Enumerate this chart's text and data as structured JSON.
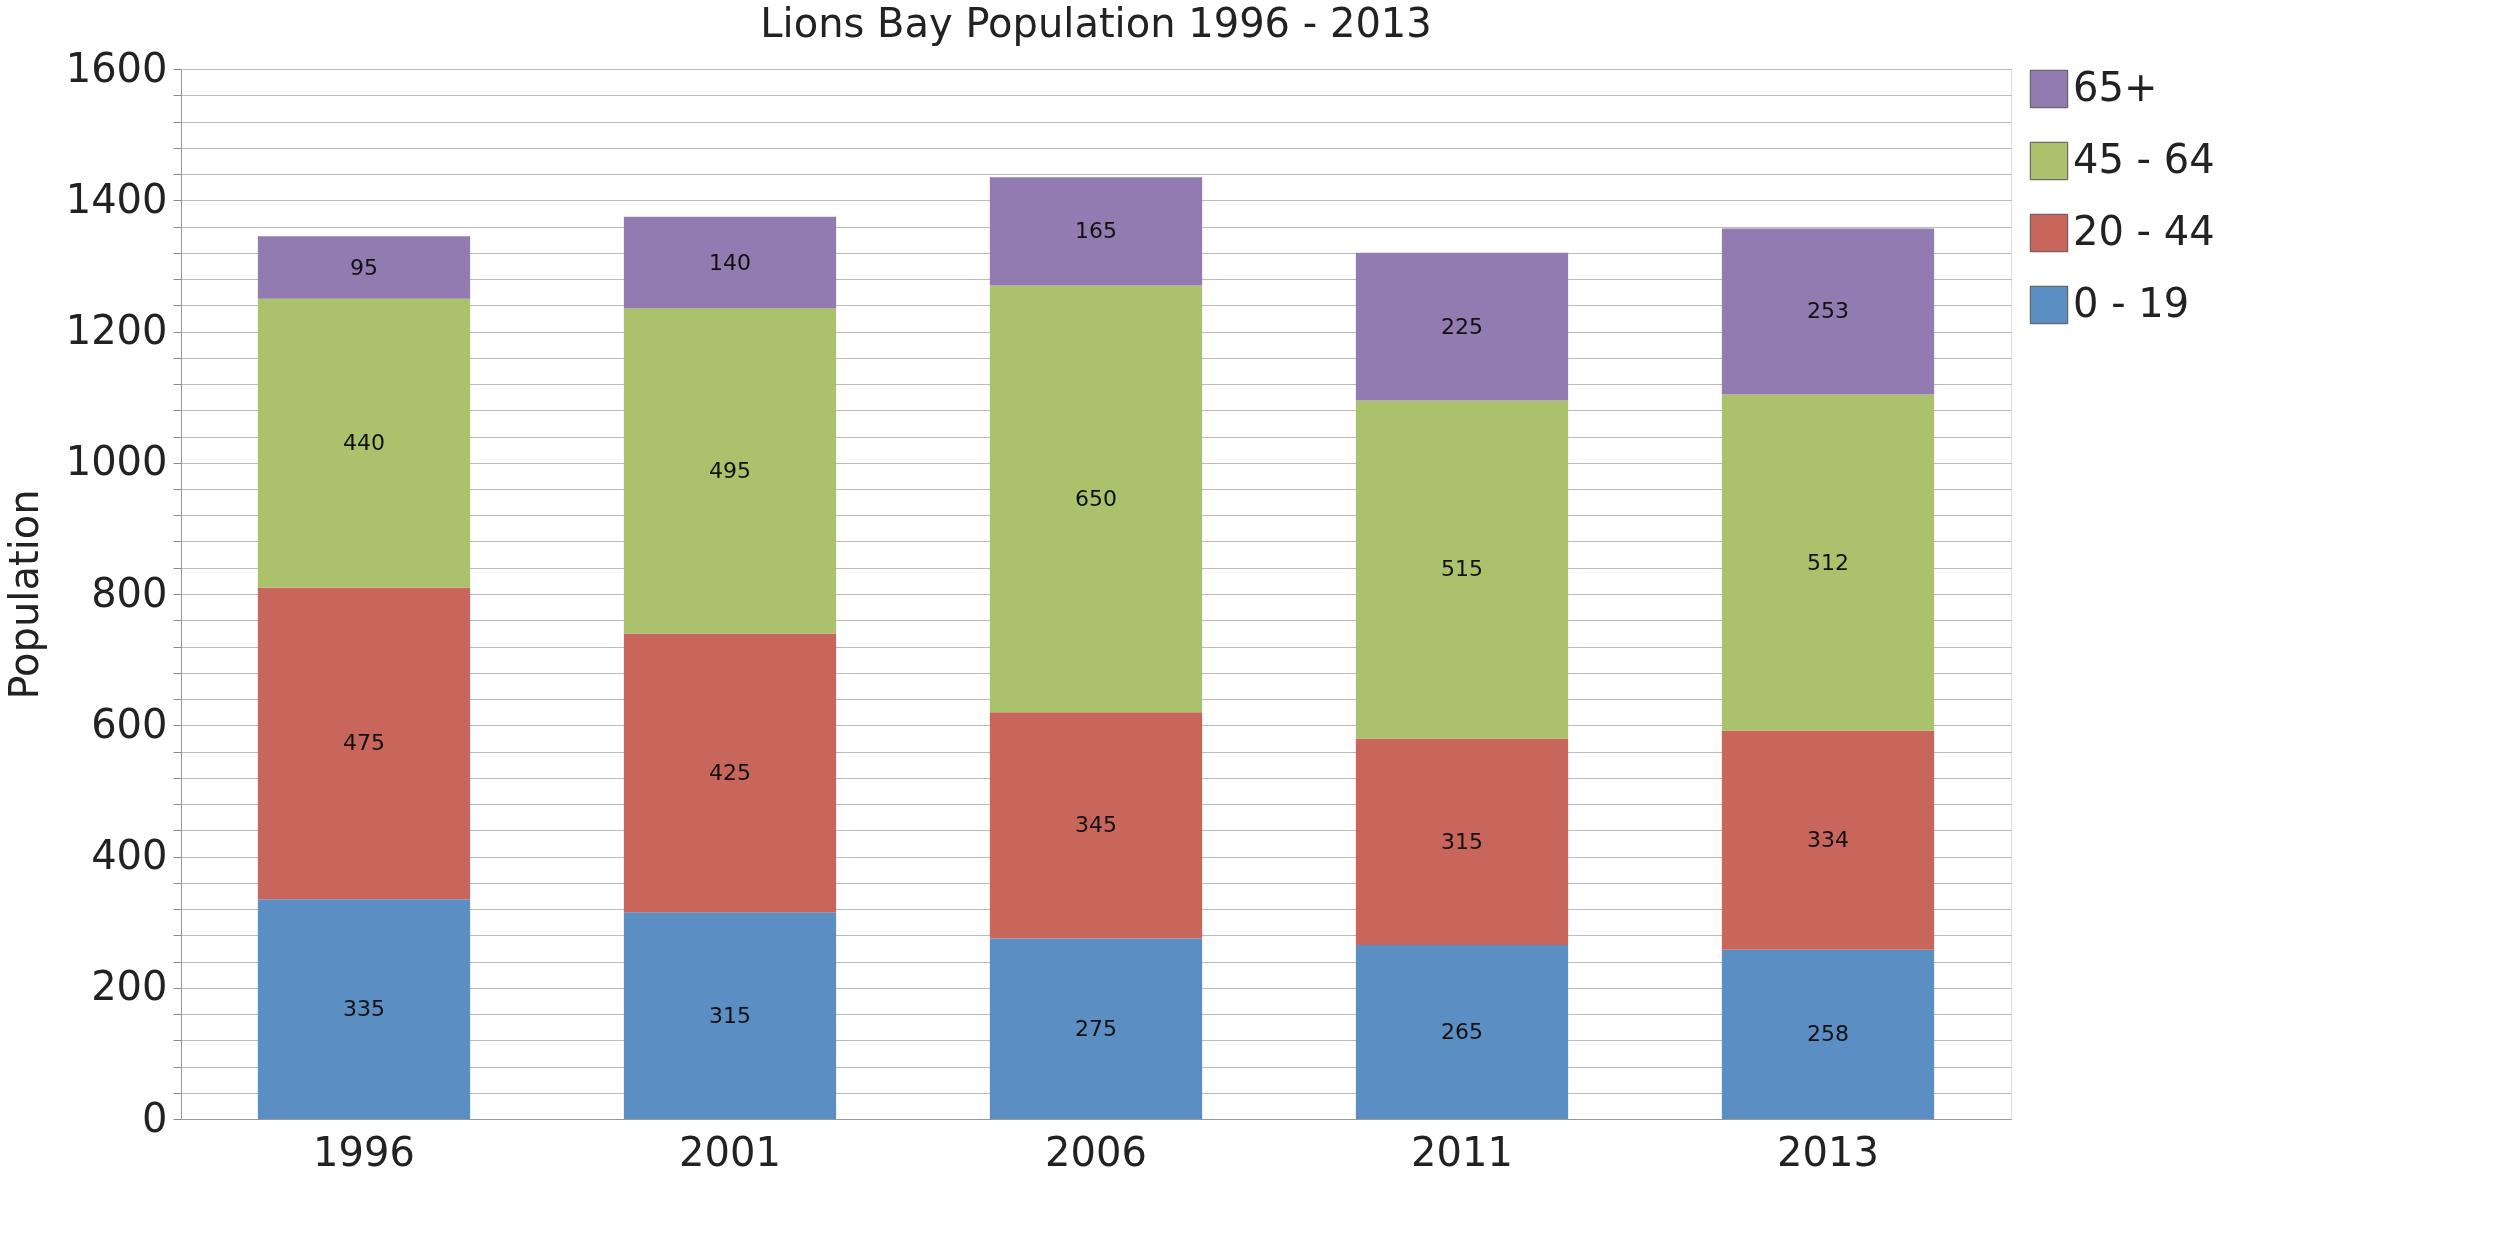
{
  "chart_data": {
    "type": "bar",
    "stacked": true,
    "title": "Lions Bay Population 1996 - 2013",
    "ylabel": "Population",
    "categories": [
      "1996",
      "2001",
      "2006",
      "2011",
      "2013"
    ],
    "series": [
      {
        "name": "0 - 19",
        "color": "#5b8fc4",
        "values": [
          335,
          315,
          275,
          265,
          258
        ]
      },
      {
        "name": "20 - 44",
        "color": "#c9665c",
        "values": [
          475,
          425,
          345,
          315,
          334
        ]
      },
      {
        "name": "45 - 64",
        "color": "#aac26b",
        "values": [
          440,
          495,
          650,
          515,
          512
        ]
      },
      {
        "name": "65+",
        "color": "#917bb0",
        "values": [
          95,
          140,
          165,
          225,
          253
        ]
      }
    ],
    "ylim": [
      0,
      1600
    ],
    "yticks": [
      0,
      {
        "value": 40,
        "label": null
      },
      {
        "value": 80,
        "label": null
      },
      {
        "value": 120,
        "label": null
      },
      {
        "value": 160,
        "label": null
      },
      200,
      {
        "value": 240,
        "label": null
      },
      {
        "value": 280,
        "label": null
      },
      {
        "value": 320,
        "label": null
      },
      {
        "value": 360,
        "label": null
      },
      400,
      {
        "value": 440,
        "label": null
      },
      {
        "value": 480,
        "label": null
      },
      {
        "value": 520,
        "label": null
      },
      {
        "value": 560,
        "label": null
      },
      600,
      {
        "value": 640,
        "label": null
      },
      {
        "value": 680,
        "label": null
      },
      {
        "value": 720,
        "label": null
      },
      {
        "value": 760,
        "label": null
      },
      800,
      {
        "value": 840,
        "label": null
      },
      {
        "value": 880,
        "label": null
      },
      {
        "value": 920,
        "label": null
      },
      {
        "value": 960,
        "label": null
      },
      1000,
      {
        "value": 1040,
        "label": null
      },
      {
        "value": 1080,
        "label": null
      },
      {
        "value": 1120,
        "label": null
      },
      {
        "value": 1160,
        "label": null
      },
      1200,
      {
        "value": 1240,
        "label": null
      },
      {
        "value": 1280,
        "label": null
      },
      {
        "value": 1320,
        "label": null
      },
      {
        "value": 1360,
        "label": null
      },
      1400,
      {
        "value": 1440,
        "label": null
      },
      {
        "value": 1480,
        "label": null
      },
      {
        "value": 1520,
        "label": null
      },
      {
        "value": 1560,
        "label": null
      },
      1600
    ],
    "grid": "y",
    "legend": "right",
    "data_labels": true
  }
}
